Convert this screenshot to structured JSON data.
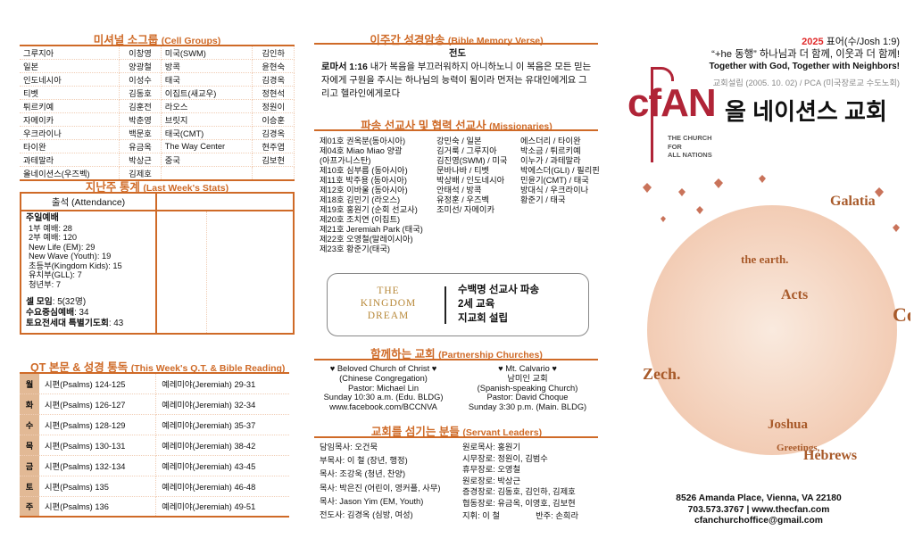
{
  "cell_groups": {
    "title": "미셔널 소그룹",
    "title_en": "(Cell Groups)",
    "rows": [
      [
        "그루지아",
        "이창영",
        "미국(SWM)",
        "김인하"
      ],
      [
        "일본",
        "양광철",
        "방콕",
        "윤현숙"
      ],
      [
        "인도네시아",
        "이성수",
        "태국",
        "김경옥"
      ],
      [
        "티벳",
        "김동호",
        "이집트(새교우)",
        "정현석"
      ],
      [
        "튀르키예",
        "김훈전",
        "라오스",
        "정원이"
      ],
      [
        "자메이카",
        "박춘영",
        "브릿지",
        "이승훈"
      ],
      [
        "우크라이나",
        "백문호",
        "태국(CMT)",
        "김경옥"
      ],
      [
        "타이완",
        "유금옥",
        "The Way Center",
        "현주엽"
      ],
      [
        "과테말라",
        "박상근",
        "중국",
        "김보현"
      ],
      [
        "올네이션스(우즈벡)",
        "김제호",
        "",
        ""
      ]
    ]
  },
  "stats": {
    "title": "지난주 통계",
    "title_en": "(Last Week's Stats)",
    "header": "출석 (Attendance)",
    "sunday": "주일예배",
    "lines": [
      "1부 예배: 28",
      "2부 예배: 120",
      "New Life (EM): 29",
      "New Wave (Youth): 19",
      "초등부(Kingdom Kids): 15",
      "유치부(GLL): 7",
      "청년부: 7"
    ],
    "cell_label": "셀 모임",
    "cell_value": ": 5(32명)",
    "wed_label": "수요중심예배",
    "wed_value": ": 34",
    "sat_label": "토요전세대 특별기도회",
    "sat_value": ": 43"
  },
  "qt": {
    "title": "QT 본문 & 성경 통독",
    "title_en": "(This Week's Q.T. & Bible Reading)",
    "rows": [
      [
        "월",
        "시편(Psalms) 124-125",
        "예레미야(Jeremiah) 29-31"
      ],
      [
        "화",
        "시편(Psalms) 126-127",
        "예레미야(Jeremiah) 32-34"
      ],
      [
        "수",
        "시편(Psalms) 128-129",
        "예레미야(Jeremiah) 35-37"
      ],
      [
        "목",
        "시편(Psalms) 130-131",
        "예레미야(Jeremiah) 38-42"
      ],
      [
        "금",
        "시편(Psalms) 132-134",
        "예레미야(Jeremiah) 43-45"
      ],
      [
        "토",
        "시편(Psalms) 135",
        "예레미야(Jeremiah) 46-48"
      ],
      [
        "주",
        "시편(Psalms) 136",
        "예레미야(Jeremiah) 49-51"
      ]
    ]
  },
  "verse": {
    "title": "이주간 성경암송",
    "title_en": "(Bible Memory Verse)",
    "theme": "전도",
    "ref": "로마서 1:16",
    "text": " 내가 복음을 부끄러워하지 아니하노니 이 복음은 모든 믿는 자에게 구원을 주시는 하나님의 능력이 됨이라 먼저는 유대인에게요 그리고 헬라인에게로다"
  },
  "missionaries": {
    "title": "파송 선교사 및 협력 선교사",
    "title_en": "(Missionaries)",
    "col1": [
      "제01호 권옥분(동아시아)",
      "제04호 Miao Miao 양광",
      "(아프가니스탄)",
      "제10호 심부름 (동아시아)",
      "제11호 박주용 (동아시아)",
      "제12호 이바울 (동아시아)",
      "제18호 김민기 (라오스)",
      "제19호 홍원기 (순회 선교사)",
      "제20호 조치연 (이집트)",
      "제21호 Jeremiah Park (태국)",
      "제22호 오영철(말레이시아)",
      "제23호 황준기(태국)"
    ],
    "col2": [
      "강민숙 / 일본",
      "김거룩 / 그루지아",
      "김진영(SWM) / 미국",
      "문바나바 / 티벳",
      "박상배 / 인도네시아",
      "안태석 / 방콕",
      "유정훈 / 우즈벡",
      "조미선/ 자메이카"
    ],
    "col3": [
      "에스더리 / 타이완",
      "박소금 / 튀르키예",
      "이누가 / 과테말라",
      "박에스더(GLI) / 필리핀",
      "민윤기(CMT) / 태국",
      "방대식 / 우크라이나",
      "황준기 / 태국"
    ]
  },
  "kingdom": {
    "logo": [
      "THE",
      "KINGDOM",
      "DREAM"
    ],
    "lines": [
      "수백명 선교사 파송",
      "2세 교육",
      "지교회 설립"
    ]
  },
  "partners": {
    "title": "함께하는 교회",
    "title_en": "(Partnership Churches)",
    "left": [
      "♥ Beloved Church of Christ ♥",
      "(Chinese Congregation)",
      "Pastor: Michael Lin",
      "Sunday 10:30 a.m. (Edu. BLDG)",
      "www.facebook.com/BCCNVA"
    ],
    "right": [
      "♥ Mt. Calvario ♥",
      "남미인 교회",
      "(Spanish-speaking Church)",
      "Pastor: David Choque",
      "Sunday 3:30 p.m. (Main. BLDG)"
    ]
  },
  "leaders": {
    "title": "교회를 섬기는 분들",
    "title_en": "(Servant Leaders)",
    "left": [
      "담임목사: 오건묵",
      "부목사: 이 철 (장년, 행정)",
      "목사: 조강욱 (청년, 찬양)",
      "목사: 박은진 (어린이, 영커플, 사무)",
      "목사: Jason Yim (EM, Youth)",
      "전도사: 김경옥 (심방, 여성)"
    ],
    "right": [
      "원로목사: 홍원기",
      "시무장로: 정원이, 김범수",
      "휴무장로: 오영철",
      "원로장로: 박상근",
      "증경장로: 김동호, 김인하, 김제호",
      "협동장로: 유금옥, 이영호, 김보현"
    ],
    "conductor": "지휘: 이 철",
    "accompanist": "반주: 손희라"
  },
  "header": {
    "year": "2025",
    "motto_label": " 표어(수/Josh 1:9)",
    "motto_ko": "“+he 동행” 하나님과 더 함께, 이웃과 더 함께!",
    "motto_en": "Together with God, Together with Neighbors!",
    "founded": "교회설립 (2005. 10. 02) / PCA (미국장로교 수도노회)"
  },
  "logo": {
    "mark": "cfAN",
    "name_ko": "올 네이션스 교회",
    "sub": [
      "THE CHURCH",
      "FOR",
      "ALL NATIONS"
    ]
  },
  "contact": {
    "address": "8526 Amanda Place, Vienna, VA 22180",
    "phone_web": "703.573.3767 | www.thecfan.com",
    "email": "cfanchurchoffice@gmail.com"
  },
  "globe_words": [
    "Galatia",
    "the earth.",
    "Acts",
    "Zech.",
    "Joshua",
    "Hebrews",
    "Co",
    "Greetings,"
  ],
  "colors": {
    "accent": "#cf6a27",
    "logo_red": "#b02437",
    "gold": "#b8893a",
    "qt_day": "#e2b995"
  }
}
